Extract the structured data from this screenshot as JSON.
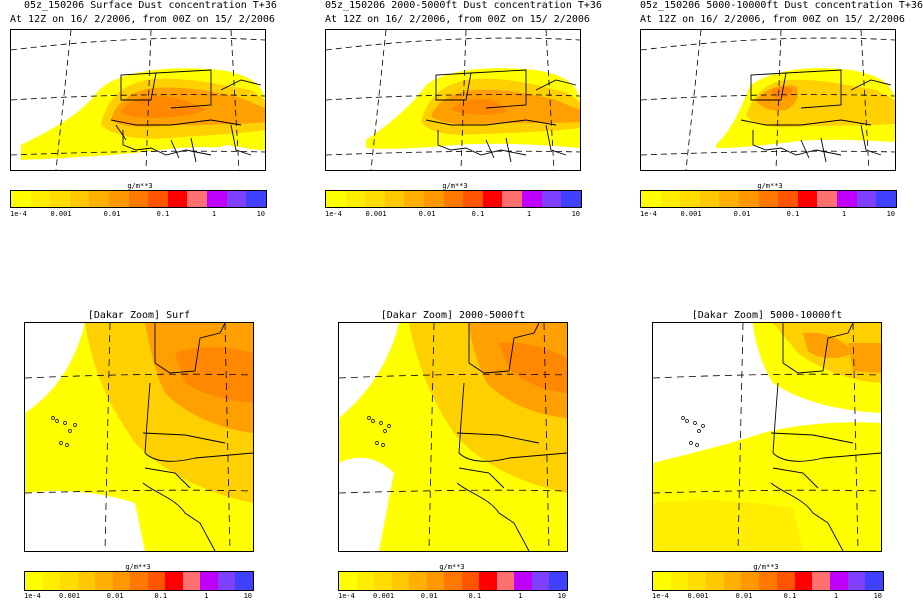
{
  "top_panels": [
    {
      "title": "05z_150206 Surface Dust concentration T+36",
      "subtitle": "At 12Z on 16/ 2/2006, from 00Z on 15/ 2/2006",
      "units": "g/m**3"
    },
    {
      "title": "05z_150206 2000-5000ft Dust concentration T+36",
      "subtitle": "At 12Z on 16/ 2/2006, from 00Z on 15/ 2/2006",
      "units": "g/m**3"
    },
    {
      "title": "05z_150206 5000-10000ft Dust concentration T+36",
      "subtitle": "At 12Z on 16/ 2/2006, from 00Z on 15/ 2/2006",
      "units": "g/m**3"
    }
  ],
  "bottom_panels": [
    {
      "title": "[Dakar Zoom] Surf",
      "units": "g/m**3"
    },
    {
      "title": "[Dakar Zoom] 2000-5000ft",
      "units": "g/m**3"
    },
    {
      "title": "[Dakar Zoom] 5000-10000ft",
      "units": "g/m**3"
    }
  ],
  "colorbar": {
    "colors": [
      "#ffff00",
      "#ffee00",
      "#ffdd00",
      "#ffc800",
      "#ffb000",
      "#ff9800",
      "#ff7800",
      "#ff5500",
      "#ff0000",
      "#ff7070",
      "#c000ff",
      "#8040ff",
      "#4040ff"
    ],
    "tick_labels": [
      "1e-4",
      "0.001",
      "0.01",
      "0.1",
      "1",
      "10"
    ]
  },
  "map_labels": {
    "ocean_color": "#ffffff",
    "dust_light": "#ffff00",
    "dust_mid": "#ffd000",
    "dust_heavy": "#ffa000",
    "dust_peak": "#ff8800"
  }
}
